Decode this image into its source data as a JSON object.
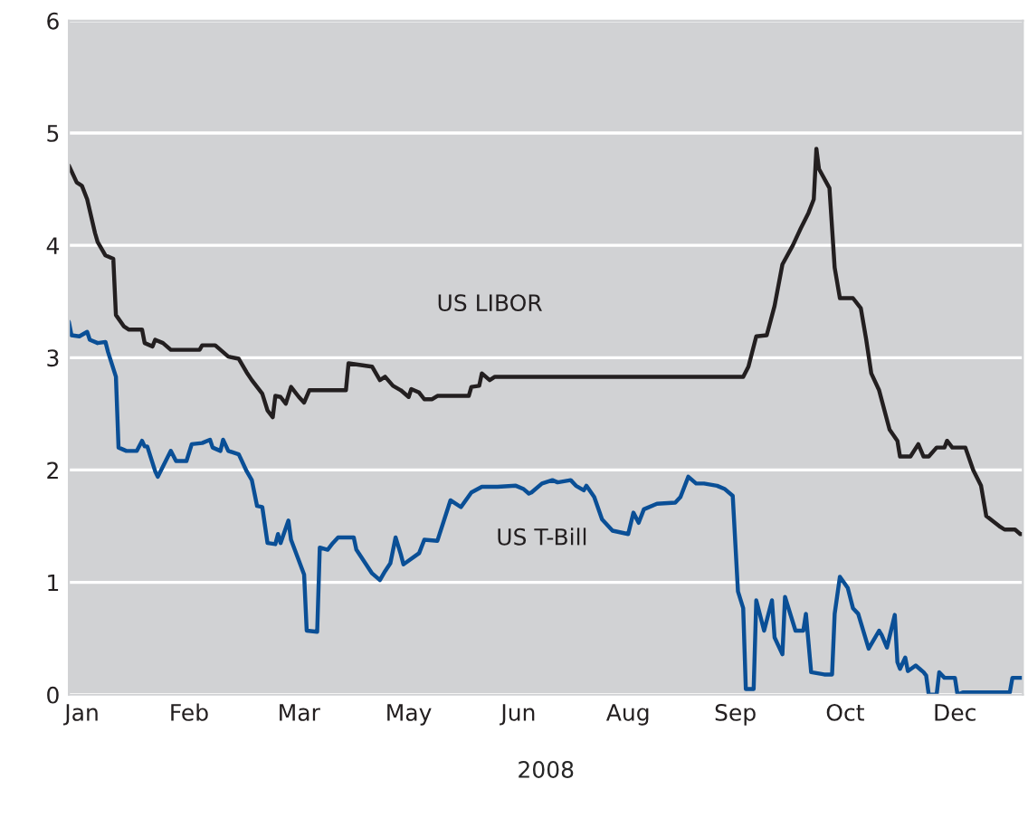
{
  "chart_data": {
    "type": "line",
    "xlabel": "2008",
    "grid": "y",
    "legend": false,
    "marker": "none",
    "line_style": "solid",
    "xlim": [
      "2008-01-01",
      "2008-12-31"
    ],
    "ylim": [
      0,
      6
    ],
    "yticks": [
      0,
      1,
      2,
      3,
      4,
      5,
      6
    ],
    "xticks": [
      {
        "value": "2008-01-06",
        "label": "Jan"
      },
      {
        "value": "2008-02-16",
        "label": "Feb"
      },
      {
        "value": "2008-03-29",
        "label": "Mar"
      },
      {
        "value": "2008-05-10",
        "label": "May"
      },
      {
        "value": "2008-06-21",
        "label": "Jun"
      },
      {
        "value": "2008-08-02",
        "label": "Aug"
      },
      {
        "value": "2008-09-12",
        "label": "Sep"
      },
      {
        "value": "2008-10-24",
        "label": "Oct"
      },
      {
        "value": "2008-12-05",
        "label": "Dec"
      }
    ],
    "series": [
      {
        "name": "US LIBOR",
        "color": "#231f20",
        "x": [
          "2008-01-01",
          "2008-01-04",
          "2008-01-06",
          "2008-01-08",
          "2008-01-11",
          "2008-01-12",
          "2008-01-15",
          "2008-01-18",
          "2008-01-19",
          "2008-01-22",
          "2008-01-24",
          "2008-01-29",
          "2008-01-30",
          "2008-02-02",
          "2008-02-03",
          "2008-02-06",
          "2008-02-09",
          "2008-02-20",
          "2008-02-21",
          "2008-02-26",
          "2008-03-02",
          "2008-03-06",
          "2008-03-09",
          "2008-03-11",
          "2008-03-15",
          "2008-03-17",
          "2008-03-19",
          "2008-03-20",
          "2008-03-22",
          "2008-03-24",
          "2008-03-26",
          "2008-03-29",
          "2008-03-31",
          "2008-04-02",
          "2008-04-16",
          "2008-04-17",
          "2008-04-26",
          "2008-04-29",
          "2008-05-01",
          "2008-05-04",
          "2008-05-07",
          "2008-05-10",
          "2008-05-11",
          "2008-05-14",
          "2008-05-16",
          "2008-05-19",
          "2008-05-21",
          "2008-06-02",
          "2008-06-03",
          "2008-06-06",
          "2008-06-07",
          "2008-06-10",
          "2008-06-12",
          "2008-07-13",
          "2008-09-15",
          "2008-09-17",
          "2008-09-20",
          "2008-09-24",
          "2008-09-27",
          "2008-09-30",
          "2008-10-04",
          "2008-10-07",
          "2008-10-10",
          "2008-10-12",
          "2008-10-13",
          "2008-10-14",
          "2008-10-18",
          "2008-10-20",
          "2008-10-22",
          "2008-10-27",
          "2008-10-30",
          "2008-11-01",
          "2008-11-03",
          "2008-11-06",
          "2008-11-10",
          "2008-11-13",
          "2008-11-14",
          "2008-11-18",
          "2008-11-21",
          "2008-11-23",
          "2008-11-25",
          "2008-11-28",
          "2008-12-01",
          "2008-12-02",
          "2008-12-04",
          "2008-12-09",
          "2008-12-12",
          "2008-12-15",
          "2008-12-17",
          "2008-12-22",
          "2008-12-24",
          "2008-12-28",
          "2008-12-30",
          "2008-12-31"
        ],
        "values": [
          4.71,
          4.56,
          4.53,
          4.41,
          4.11,
          4.03,
          3.91,
          3.88,
          3.38,
          3.28,
          3.25,
          3.25,
          3.13,
          3.1,
          3.16,
          3.13,
          3.07,
          3.07,
          3.11,
          3.11,
          3.01,
          2.99,
          2.87,
          2.8,
          2.68,
          2.53,
          2.47,
          2.66,
          2.65,
          2.59,
          2.74,
          2.65,
          2.6,
          2.71,
          2.71,
          2.95,
          2.92,
          2.8,
          2.83,
          2.75,
          2.71,
          2.65,
          2.72,
          2.69,
          2.63,
          2.63,
          2.66,
          2.66,
          2.74,
          2.75,
          2.86,
          2.8,
          2.83,
          2.83,
          2.83,
          2.92,
          3.19,
          3.2,
          3.46,
          3.83,
          4.0,
          4.15,
          4.29,
          4.41,
          4.86,
          4.68,
          4.51,
          3.8,
          3.53,
          3.53,
          3.44,
          3.17,
          2.86,
          2.71,
          2.36,
          2.26,
          2.12,
          2.12,
          2.23,
          2.12,
          2.12,
          2.2,
          2.2,
          2.26,
          2.2,
          2.2,
          2.0,
          1.86,
          1.59,
          1.5,
          1.47,
          1.47,
          1.43,
          1.43
        ]
      },
      {
        "name": "US T-Bill",
        "color": "#0a4f96",
        "x": [
          "2008-01-01",
          "2008-01-02",
          "2008-01-05",
          "2008-01-08",
          "2008-01-09",
          "2008-01-12",
          "2008-01-15",
          "2008-01-16",
          "2008-01-19",
          "2008-01-20",
          "2008-01-23",
          "2008-01-27",
          "2008-01-29",
          "2008-01-30",
          "2008-01-31",
          "2008-02-03",
          "2008-02-04",
          "2008-02-09",
          "2008-02-11",
          "2008-02-15",
          "2008-02-17",
          "2008-02-21",
          "2008-02-24",
          "2008-02-25",
          "2008-02-28",
          "2008-02-29",
          "2008-03-02",
          "2008-03-06",
          "2008-03-09",
          "2008-03-11",
          "2008-03-13",
          "2008-03-15",
          "2008-03-17",
          "2008-03-20",
          "2008-03-21",
          "2008-03-22",
          "2008-03-25",
          "2008-03-26",
          "2008-03-31",
          "2008-04-01",
          "2008-04-05",
          "2008-04-06",
          "2008-04-09",
          "2008-04-11",
          "2008-04-13",
          "2008-04-19",
          "2008-04-20",
          "2008-04-26",
          "2008-04-29",
          "2008-05-01",
          "2008-05-03",
          "2008-05-05",
          "2008-05-07",
          "2008-05-08",
          "2008-05-14",
          "2008-05-16",
          "2008-05-21",
          "2008-05-26",
          "2008-05-30",
          "2008-06-03",
          "2008-06-07",
          "2008-06-13",
          "2008-06-20",
          "2008-06-23",
          "2008-06-25",
          "2008-06-26",
          "2008-06-30",
          "2008-07-04",
          "2008-07-06",
          "2008-07-11",
          "2008-07-13",
          "2008-07-16",
          "2008-07-17",
          "2008-07-20",
          "2008-07-23",
          "2008-07-27",
          "2008-08-02",
          "2008-08-04",
          "2008-08-06",
          "2008-08-08",
          "2008-08-13",
          "2008-08-20",
          "2008-08-22",
          "2008-08-25",
          "2008-08-28",
          "2008-08-31",
          "2008-09-05",
          "2008-09-08",
          "2008-09-11",
          "2008-09-13",
          "2008-09-15",
          "2008-09-16",
          "2008-09-19",
          "2008-09-20",
          "2008-09-23",
          "2008-09-26",
          "2008-09-27",
          "2008-09-30",
          "2008-10-01",
          "2008-10-05",
          "2008-10-08",
          "2008-10-09",
          "2008-10-11",
          "2008-10-16",
          "2008-10-19",
          "2008-10-20",
          "2008-10-22",
          "2008-10-25",
          "2008-10-27",
          "2008-10-29",
          "2008-11-02",
          "2008-11-06",
          "2008-11-07",
          "2008-11-09",
          "2008-11-12",
          "2008-11-13",
          "2008-11-14",
          "2008-11-16",
          "2008-11-17",
          "2008-11-20",
          "2008-11-23",
          "2008-11-24",
          "2008-11-25",
          "2008-11-28",
          "2008-11-29",
          "2008-12-01",
          "2008-12-05",
          "2008-12-06",
          "2008-12-08",
          "2008-12-26",
          "2008-12-27",
          "2008-12-31"
        ],
        "values": [
          3.32,
          3.2,
          3.19,
          3.23,
          3.16,
          3.13,
          3.14,
          3.05,
          2.83,
          2.2,
          2.17,
          2.17,
          2.26,
          2.21,
          2.21,
          1.99,
          1.94,
          2.17,
          2.08,
          2.08,
          2.23,
          2.24,
          2.27,
          2.2,
          2.17,
          2.27,
          2.17,
          2.14,
          1.99,
          1.91,
          1.68,
          1.67,
          1.35,
          1.34,
          1.43,
          1.35,
          1.55,
          1.38,
          1.07,
          0.57,
          0.56,
          1.31,
          1.29,
          1.35,
          1.4,
          1.4,
          1.29,
          1.08,
          1.02,
          1.1,
          1.17,
          1.4,
          1.25,
          1.16,
          1.26,
          1.38,
          1.37,
          1.73,
          1.67,
          1.8,
          1.85,
          1.85,
          1.86,
          1.83,
          1.79,
          1.8,
          1.88,
          1.91,
          1.89,
          1.91,
          1.86,
          1.82,
          1.86,
          1.76,
          1.56,
          1.46,
          1.43,
          1.62,
          1.53,
          1.65,
          1.7,
          1.71,
          1.76,
          1.94,
          1.88,
          1.88,
          1.86,
          1.83,
          1.77,
          0.92,
          0.77,
          0.05,
          0.05,
          0.84,
          0.57,
          0.84,
          0.51,
          0.36,
          0.87,
          0.57,
          0.57,
          0.72,
          0.2,
          0.18,
          0.18,
          0.72,
          1.05,
          0.95,
          0.77,
          0.72,
          0.41,
          0.57,
          0.53,
          0.42,
          0.71,
          0.29,
          0.23,
          0.33,
          0.21,
          0.26,
          0.2,
          0.17,
          0.0,
          0.0,
          0.2,
          0.15,
          0.15,
          0.0,
          0.02,
          0.02,
          0.15,
          0.15
        ]
      }
    ]
  }
}
